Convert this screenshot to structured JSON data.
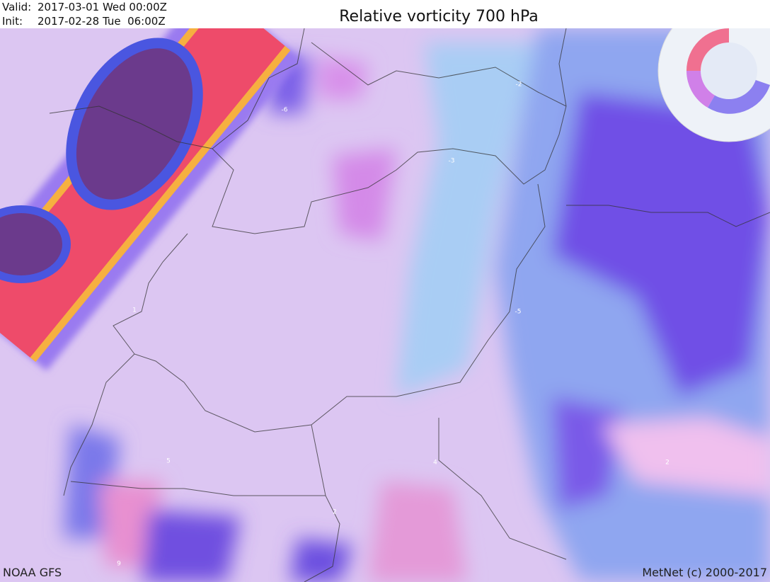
{
  "header": {
    "valid_label": "Valid:",
    "valid": "2017-03-01 Wed 00:00Z",
    "init_label": "Init:",
    "init": "2017-02-28 Tue  06:00Z",
    "title": "Relative vorticity 700 hPa"
  },
  "map": {
    "contour_labels": [
      "-2",
      "-6",
      "-3",
      "1",
      "-5",
      "5",
      "4",
      "2",
      "2",
      "9"
    ]
  },
  "footer": {
    "source": "NOAA GFS",
    "credit": "MetNet (c) 2000-2017"
  }
}
